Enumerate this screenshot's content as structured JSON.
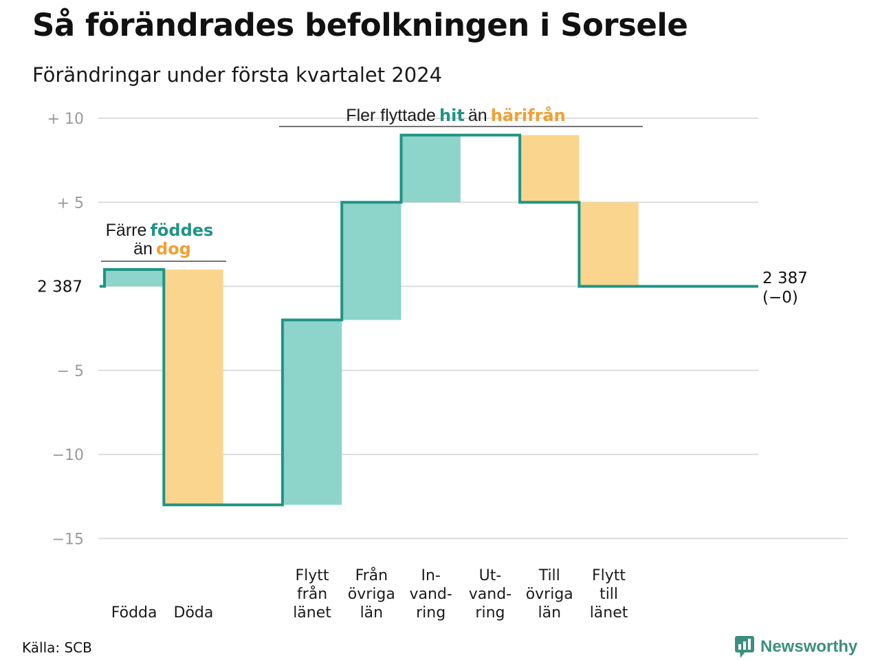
{
  "title": "Så förändrades befolkningen i Sorsele",
  "subtitle": "Förändringar under första kvartalet 2024",
  "source": "Källa: SCB",
  "brand": "Newsworthy",
  "colors": {
    "increase": "#8dd4cb",
    "decrease": "#fad58e",
    "line": "#1f9484",
    "hit_text": "#1f9484",
    "away_text": "#f0a030",
    "grid": "#dddddd"
  },
  "annotations": {
    "births": {
      "pre": "Färre",
      "hl1": "föddes",
      "pre2": "än",
      "hl2": "dog"
    },
    "moves": {
      "pre": "Fler flyttade",
      "hl1": "hit",
      "mid": "än",
      "hl2": "härifrån"
    }
  },
  "start_label": "2 387",
  "end_label": {
    "value": "2 387",
    "change": "(−0)"
  },
  "chart_data": {
    "type": "waterfall",
    "title": "Så förändrades befolkningen i Sorsele",
    "subtitle": "Förändringar under första kvartalet 2024",
    "start_value": 2387,
    "end_value": 2387,
    "net_change": 0,
    "ylim": [
      -15,
      10
    ],
    "yticks": [
      10,
      5,
      0,
      -5,
      -10,
      -15
    ],
    "ytick_labels": [
      "+ 10",
      "+ 5",
      "2 387",
      "− 5",
      "−10",
      "−15"
    ],
    "grid": true,
    "categories": [
      {
        "label": [
          "Födda"
        ],
        "value": 1,
        "kind": "increase"
      },
      {
        "label": [
          "Döda"
        ],
        "value": -14,
        "kind": "decrease"
      },
      {
        "label": [],
        "value": 0,
        "kind": "gap"
      },
      {
        "label": [
          "Flytt",
          "från",
          "länet"
        ],
        "value": 11,
        "kind": "increase"
      },
      {
        "label": [
          "Från",
          "övriga",
          "län"
        ],
        "value": 7,
        "kind": "increase"
      },
      {
        "label": [
          "In-",
          "vand-",
          "ring"
        ],
        "value": 4,
        "kind": "increase"
      },
      {
        "label": [
          "Ut-",
          "vand-",
          "ring"
        ],
        "value": 0,
        "kind": "decrease"
      },
      {
        "label": [
          "Till",
          "övriga",
          "län"
        ],
        "value": -4,
        "kind": "decrease"
      },
      {
        "label": [
          "Flytt",
          "till",
          "länet"
        ],
        "value": -5,
        "kind": "decrease"
      }
    ]
  }
}
